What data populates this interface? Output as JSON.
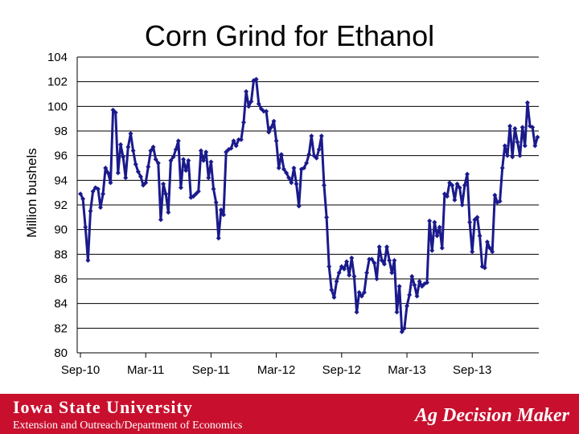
{
  "chart_data": {
    "type": "line",
    "title": "Corn Grind for Ethanol",
    "ylabel": "Million bushels",
    "xlabel": "",
    "ylim": [
      80,
      104
    ],
    "yticks": [
      80,
      82,
      84,
      86,
      88,
      90,
      92,
      94,
      96,
      98,
      100,
      102,
      104
    ],
    "xtick_labels": [
      "Sep-10",
      "Mar-11",
      "Sep-11",
      "Mar-12",
      "Sep-12",
      "Mar-13",
      "Sep-13"
    ],
    "xtick_week_index": [
      0,
      26,
      52,
      78,
      104,
      130,
      156
    ],
    "grid": true,
    "legend": "none",
    "series": [
      {
        "color": "#1a1a8c",
        "values": [
          92.9,
          92.5,
          90.2,
          87.5,
          91.5,
          93.1,
          93.4,
          93.3,
          91.8,
          92.9,
          95.0,
          94.6,
          93.8,
          99.7,
          99.5,
          94.6,
          96.9,
          95.9,
          94.2,
          96.7,
          97.8,
          96.4,
          95.3,
          94.7,
          94.3,
          93.6,
          93.8,
          95.1,
          96.4,
          96.7,
          95.7,
          95.4,
          90.8,
          93.7,
          92.9,
          91.4,
          95.6,
          95.9,
          96.5,
          97.2,
          93.4,
          95.7,
          94.8,
          95.6,
          92.6,
          92.7,
          92.9,
          93.1,
          96.4,
          95.6,
          96.3,
          94.2,
          95.5,
          93.3,
          92.2,
          89.3,
          91.6,
          91.2,
          96.3,
          96.5,
          96.6,
          97.2,
          96.8,
          97.3,
          97.3,
          98.7,
          101.2,
          100.0,
          100.4,
          102.1,
          102.2,
          100.2,
          99.8,
          99.6,
          99.6,
          97.9,
          98.3,
          98.8,
          97.2,
          95.0,
          96.1,
          94.9,
          94.6,
          94.2,
          93.8,
          95.0,
          93.7,
          91.9,
          94.9,
          95.0,
          95.4,
          96.1,
          97.6,
          96.0,
          95.8,
          96.5,
          97.6,
          93.6,
          91.0,
          87.0,
          85.1,
          84.5,
          85.8,
          86.5,
          87.0,
          86.8,
          87.4,
          86.3,
          87.7,
          86.2,
          83.3,
          84.9,
          84.6,
          84.9,
          86.5,
          87.6,
          87.6,
          87.3,
          86.0,
          88.6,
          87.5,
          87.2,
          88.6,
          87.5,
          86.5,
          87.5,
          83.3,
          85.4,
          81.7,
          82.0,
          83.8,
          84.7,
          86.2,
          85.5,
          84.6,
          85.8,
          85.4,
          85.6,
          85.7,
          90.7,
          88.3,
          90.6,
          89.5,
          90.2,
          88.5,
          92.9,
          92.7,
          93.8,
          93.6,
          92.4,
          93.7,
          93.4,
          92.0,
          93.6,
          94.5,
          90.6,
          88.2,
          90.8,
          91.0,
          89.5,
          87.0,
          86.9,
          89.0,
          88.5,
          88.2,
          92.8,
          92.2,
          92.3,
          95.0,
          96.8,
          96.0,
          98.4,
          95.9,
          98.2,
          97.1,
          96.0,
          98.3,
          96.8,
          100.3,
          98.4,
          98.3,
          96.8,
          97.5
        ]
      }
    ]
  },
  "footer": {
    "university": "Iowa State University",
    "department": "Extension and Outreach/Department of Economics",
    "brand": "Ag Decision Maker"
  }
}
